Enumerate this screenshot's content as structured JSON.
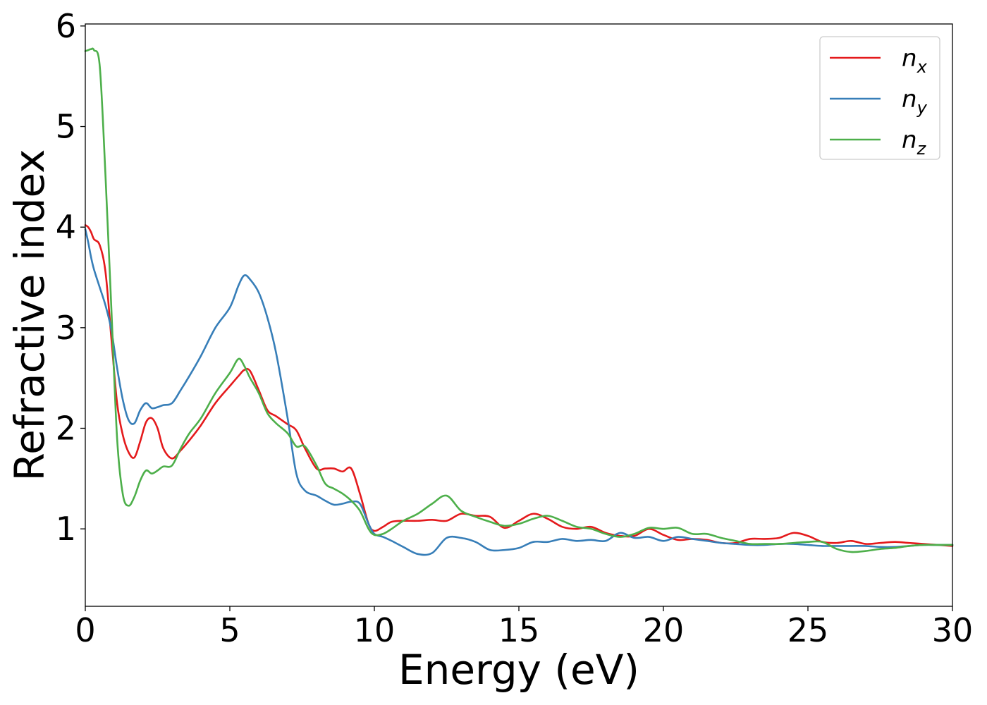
{
  "chart_data": {
    "type": "line",
    "title": "",
    "xlabel": "Energy (eV)",
    "ylabel": "Refractive index",
    "xlim": [
      0,
      30
    ],
    "ylim": [
      0.23,
      6.02
    ],
    "x_ticks": [
      0,
      5,
      10,
      15,
      20,
      25,
      30
    ],
    "y_ticks": [
      1,
      2,
      3,
      4,
      5,
      6
    ],
    "x_tick_labels": [
      "0",
      "5",
      "10",
      "15",
      "20",
      "25",
      "30"
    ],
    "y_tick_labels": [
      "1",
      "2",
      "3",
      "4",
      "5",
      "6"
    ],
    "grid": false,
    "legend_position": "top-right",
    "series": [
      {
        "name": "n",
        "subscript": "x",
        "color": "#e41a1c",
        "x": [
          0,
          0.1,
          0.2,
          0.3,
          0.5,
          0.7,
          0.9,
          1.1,
          1.3,
          1.5,
          1.7,
          1.9,
          2.1,
          2.3,
          2.5,
          2.7,
          3.0,
          3.3,
          3.6,
          4.0,
          4.5,
          5.0,
          5.3,
          5.5,
          5.7,
          6.0,
          6.3,
          6.6,
          7.0,
          7.3,
          7.6,
          8.0,
          8.3,
          8.6,
          8.9,
          9.2,
          9.5,
          9.8,
          10.0,
          10.3,
          10.6,
          11.0,
          11.5,
          12.0,
          12.5,
          13.0,
          13.5,
          14.0,
          14.5,
          15.0,
          15.5,
          16.0,
          16.5,
          17.0,
          17.5,
          18.0,
          18.5,
          19.0,
          19.5,
          20.0,
          20.5,
          21.0,
          21.5,
          22.0,
          22.5,
          23.0,
          23.5,
          24.0,
          24.5,
          25.0,
          25.5,
          26.0,
          26.5,
          27.0,
          27.5,
          28.0,
          28.5,
          29.0,
          29.5,
          30.0
        ],
        "y": [
          4.02,
          4.0,
          3.95,
          3.88,
          3.82,
          3.55,
          2.9,
          2.25,
          1.93,
          1.76,
          1.71,
          1.87,
          2.06,
          2.1,
          2.0,
          1.8,
          1.7,
          1.78,
          1.88,
          2.03,
          2.25,
          2.42,
          2.52,
          2.58,
          2.57,
          2.38,
          2.18,
          2.12,
          2.04,
          1.98,
          1.8,
          1.6,
          1.6,
          1.6,
          1.57,
          1.6,
          1.35,
          1.05,
          0.98,
          1.02,
          1.07,
          1.08,
          1.08,
          1.09,
          1.08,
          1.15,
          1.13,
          1.12,
          1.01,
          1.08,
          1.15,
          1.1,
          1.02,
          1.0,
          1.02,
          0.96,
          0.93,
          0.93,
          1.0,
          0.94,
          0.89,
          0.9,
          0.89,
          0.86,
          0.86,
          0.9,
          0.9,
          0.91,
          0.96,
          0.93,
          0.87,
          0.86,
          0.88,
          0.85,
          0.86,
          0.87,
          0.86,
          0.85,
          0.84,
          0.83
        ]
      },
      {
        "name": "n",
        "subscript": "y",
        "color": "#377eb8",
        "x": [
          0,
          0.1,
          0.2,
          0.3,
          0.5,
          0.7,
          0.9,
          1.1,
          1.3,
          1.5,
          1.7,
          1.9,
          2.1,
          2.3,
          2.5,
          2.7,
          3.0,
          3.3,
          3.6,
          4.0,
          4.5,
          5.0,
          5.3,
          5.5,
          5.7,
          6.0,
          6.3,
          6.6,
          7.0,
          7.3,
          7.6,
          8.0,
          8.3,
          8.6,
          8.9,
          9.2,
          9.5,
          9.8,
          10.0,
          10.3,
          10.6,
          11.0,
          11.5,
          12.0,
          12.5,
          13.0,
          13.5,
          14.0,
          14.5,
          15.0,
          15.5,
          16.0,
          16.5,
          17.0,
          17.5,
          18.0,
          18.5,
          19.0,
          19.5,
          20.0,
          20.5,
          21.0,
          21.5,
          22.0,
          22.5,
          23.0,
          23.5,
          24.0,
          24.5,
          25.0,
          25.5,
          26.0,
          26.5,
          27.0,
          27.5,
          28.0,
          28.5,
          29.0,
          29.5,
          30.0
        ],
        "y": [
          3.98,
          3.85,
          3.7,
          3.58,
          3.4,
          3.22,
          2.98,
          2.6,
          2.28,
          2.08,
          2.05,
          2.18,
          2.25,
          2.2,
          2.21,
          2.23,
          2.25,
          2.38,
          2.52,
          2.72,
          3.0,
          3.2,
          3.42,
          3.52,
          3.48,
          3.35,
          3.1,
          2.75,
          2.1,
          1.55,
          1.38,
          1.33,
          1.28,
          1.24,
          1.25,
          1.27,
          1.25,
          1.05,
          0.95,
          0.92,
          0.88,
          0.82,
          0.75,
          0.76,
          0.91,
          0.91,
          0.87,
          0.79,
          0.79,
          0.81,
          0.87,
          0.87,
          0.9,
          0.88,
          0.89,
          0.88,
          0.96,
          0.91,
          0.92,
          0.88,
          0.92,
          0.9,
          0.88,
          0.86,
          0.85,
          0.84,
          0.84,
          0.85,
          0.85,
          0.84,
          0.83,
          0.83,
          0.83,
          0.83,
          0.82,
          0.82,
          0.83,
          0.84,
          0.84,
          0.84
        ]
      },
      {
        "name": "n",
        "subscript": "z",
        "color": "#4daf4a",
        "x": [
          0,
          0.1,
          0.2,
          0.3,
          0.5,
          0.7,
          0.9,
          1.1,
          1.3,
          1.5,
          1.7,
          1.9,
          2.1,
          2.3,
          2.5,
          2.7,
          3.0,
          3.3,
          3.6,
          4.0,
          4.5,
          5.0,
          5.3,
          5.5,
          5.7,
          6.0,
          6.3,
          6.6,
          7.0,
          7.3,
          7.6,
          8.0,
          8.3,
          8.6,
          8.9,
          9.2,
          9.5,
          9.8,
          10.0,
          10.3,
          10.6,
          11.0,
          11.5,
          12.0,
          12.5,
          13.0,
          13.5,
          14.0,
          14.5,
          15.0,
          15.5,
          16.0,
          16.5,
          17.0,
          17.5,
          18.0,
          18.5,
          19.0,
          19.5,
          20.0,
          20.5,
          21.0,
          21.5,
          22.0,
          22.5,
          23.0,
          23.5,
          24.0,
          24.5,
          25.0,
          25.5,
          26.0,
          26.5,
          27.0,
          27.5,
          28.0,
          28.5,
          29.0,
          29.5,
          30.0
        ],
        "y": [
          5.75,
          5.76,
          5.77,
          5.76,
          5.6,
          4.5,
          3.2,
          1.9,
          1.34,
          1.23,
          1.32,
          1.48,
          1.58,
          1.55,
          1.58,
          1.62,
          1.63,
          1.8,
          1.95,
          2.1,
          2.35,
          2.55,
          2.69,
          2.62,
          2.5,
          2.35,
          2.15,
          2.05,
          1.95,
          1.82,
          1.82,
          1.63,
          1.45,
          1.4,
          1.35,
          1.28,
          1.18,
          1.0,
          0.94,
          0.95,
          1.0,
          1.08,
          1.15,
          1.25,
          1.33,
          1.18,
          1.12,
          1.07,
          1.03,
          1.05,
          1.1,
          1.13,
          1.08,
          1.02,
          1.0,
          0.95,
          0.92,
          0.95,
          1.01,
          1.0,
          1.01,
          0.95,
          0.95,
          0.91,
          0.88,
          0.85,
          0.85,
          0.85,
          0.86,
          0.87,
          0.87,
          0.8,
          0.77,
          0.78,
          0.8,
          0.81,
          0.83,
          0.84,
          0.84,
          0.84
        ]
      }
    ]
  }
}
